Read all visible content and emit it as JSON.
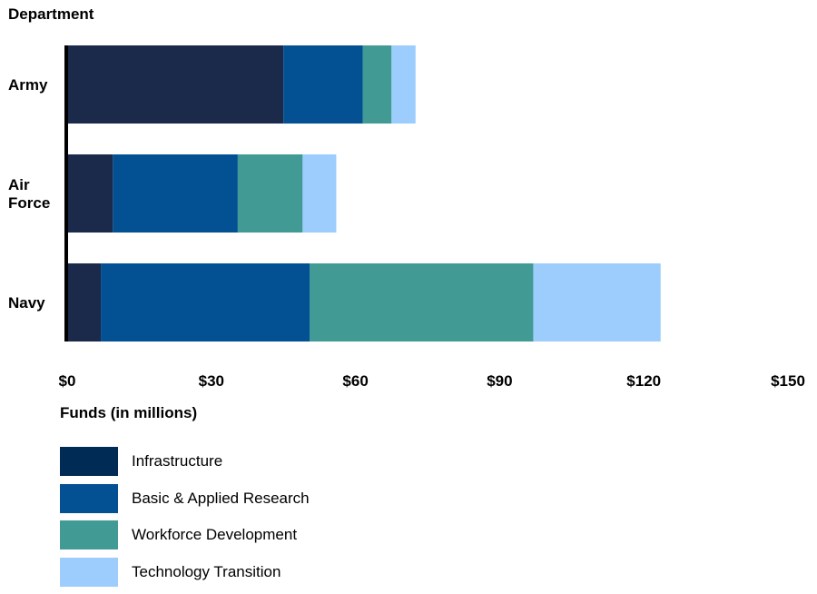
{
  "chart_data": {
    "type": "bar",
    "orientation": "horizontal",
    "stacked": true,
    "ylabel": "Department",
    "xlabel": "Funds (in millions)",
    "categories": [
      "Army",
      "Air Force",
      "Navy"
    ],
    "xlim": [
      0,
      150
    ],
    "xticks": [
      0,
      30,
      60,
      90,
      120,
      150
    ],
    "xtick_labels": [
      "$0",
      "$30",
      "$60",
      "$90",
      "$120",
      "$150"
    ],
    "series": [
      {
        "name": "Infrastructure",
        "color": "#1b2a4a",
        "legend_color": "#002b55",
        "values": [
          45,
          9.5,
          7
        ]
      },
      {
        "name": "Basic & Applied Research",
        "color": "#035092",
        "legend_color": "#035092",
        "values": [
          16.5,
          26,
          43.5
        ]
      },
      {
        "name": "Workforce Development",
        "color": "#419b94",
        "legend_color": "#419b94",
        "values": [
          6,
          13.5,
          46.5
        ]
      },
      {
        "name": "Technology Transition",
        "color": "#9ccdfd",
        "legend_color": "#9ccdfd",
        "values": [
          5,
          7,
          26.5
        ]
      }
    ],
    "grid": false,
    "legend_position": "bottom-left"
  }
}
